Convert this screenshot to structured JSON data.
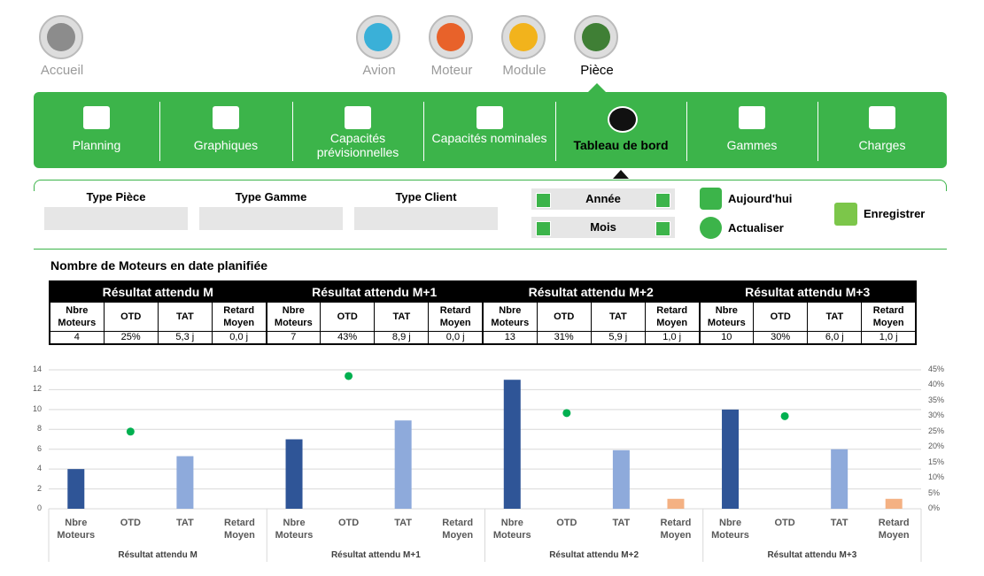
{
  "nav": [
    "Accueil",
    "Avion",
    "Moteur",
    "Module",
    "Pièce"
  ],
  "tabs": [
    "Planning",
    "Graphiques",
    "Capacités prévisionnelles",
    "Capacités nominales",
    "Tableau de bord",
    "Gammes",
    "Charges"
  ],
  "filters": {
    "fields": [
      "Type Pièce",
      "Type Gamme",
      "Type Client"
    ],
    "periods": [
      "Année",
      "Mois"
    ],
    "actions": [
      "Aujourd'hui",
      "Actualiser"
    ],
    "save": "Enregistrer"
  },
  "table": {
    "title": "Nombre de Moteurs en date planifiée",
    "cells": [
      [
        "4",
        "25%",
        "5,3 j",
        "0,0 j"
      ],
      [
        "7",
        "43%",
        "8,9 j",
        "0,0 j"
      ],
      [
        "13",
        "31%",
        "5,9 j",
        "1,0 j"
      ],
      [
        "10",
        "30%",
        "6,0 j",
        "1,0 j"
      ]
    ]
  },
  "chart_data": {
    "type": "bar",
    "groups": [
      "Résultat attendu M",
      "Résultat attendu M+1",
      "Résultat attendu M+2",
      "Résultat attendu M+3"
    ],
    "categories": [
      "Nbre Moteurs",
      "OTD",
      "TAT",
      "Retard Moyen"
    ],
    "series": [
      {
        "color": "#2f5597",
        "values": [
          4,
          7,
          13,
          10
        ]
      },
      {
        "color": "#00b050",
        "axis": "y2",
        "values": [
          25,
          43,
          31,
          30
        ]
      },
      {
        "color": "#8eaadb",
        "values": [
          5.3,
          8.9,
          5.9,
          6.0
        ]
      },
      {
        "color": "#f4b183",
        "values": [
          0,
          0,
          1,
          1
        ]
      }
    ],
    "ylim": [
      0,
      14
    ],
    "yticks": [
      0,
      2,
      4,
      6,
      8,
      10,
      12,
      14
    ],
    "y2lim": [
      0,
      45
    ],
    "y2ticks": [
      {
        "value": 0,
        "label": "0%"
      },
      {
        "value": 5,
        "label": "5%"
      },
      {
        "value": 10,
        "label": "10%"
      },
      {
        "value": 15,
        "label": "15%"
      },
      {
        "value": 20,
        "label": "20%"
      },
      {
        "value": 25,
        "label": "25%"
      },
      {
        "value": 30,
        "label": "30%"
      },
      {
        "value": 35,
        "label": "35%"
      },
      {
        "value": 40,
        "label": "40%"
      },
      {
        "value": 45,
        "label": "45%"
      }
    ],
    "grid": true
  }
}
